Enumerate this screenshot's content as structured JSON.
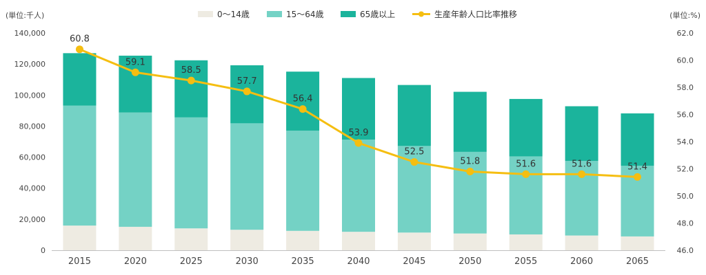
{
  "chart_data": {
    "type": "bar",
    "stacked": true,
    "categories": [
      "2015",
      "2020",
      "2025",
      "2030",
      "2035",
      "2040",
      "2045",
      "2050",
      "2055",
      "2060",
      "2065"
    ],
    "series": [
      {
        "name": "0～14歳",
        "color": "#EEEBE2",
        "values": [
          15900,
          15100,
          14100,
          13200,
          12500,
          11900,
          11400,
          10800,
          10200,
          9500,
          8900
        ]
      },
      {
        "name": "15～64歳",
        "color": "#74D2C5",
        "values": [
          77300,
          73700,
          71500,
          68600,
          64600,
          59400,
          55800,
          52600,
          50300,
          48100,
          45500
        ]
      },
      {
        "name": "65歳以上",
        "color": "#1BB49C",
        "values": [
          33800,
          36600,
          36800,
          37400,
          38000,
          39700,
          39300,
          38700,
          37000,
          35200,
          33800
        ]
      }
    ],
    "line_series": {
      "name": "生産年齢人口比率推移",
      "color": "#F5BE11",
      "values": [
        60.8,
        59.1,
        58.5,
        57.7,
        56.4,
        53.9,
        52.5,
        51.8,
        51.6,
        51.6,
        51.4
      ]
    },
    "left_axis": {
      "unit_label": "(単位:千人)",
      "ylim": [
        0,
        140000
      ],
      "ticks": [
        "0",
        "20,000",
        "40,000",
        "60,000",
        "80,000",
        "100,000",
        "120,000",
        "140,000"
      ]
    },
    "right_axis": {
      "unit_label": "(単位:%)",
      "ylim": [
        46,
        62
      ],
      "ticks": [
        "46.0",
        "48.0",
        "50.0",
        "52.0",
        "54.0",
        "56.0",
        "58.0",
        "60.0",
        "62.0"
      ]
    },
    "legend_position": "top-center",
    "grid": false
  }
}
